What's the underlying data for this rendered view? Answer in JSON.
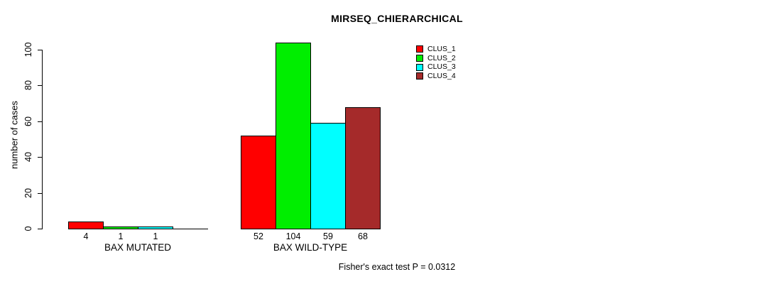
{
  "title": "MIRSEQ_CHIERARCHICAL",
  "chart_data": {
    "type": "bar",
    "title": "MIRSEQ_CHIERARCHICAL",
    "xlabel": "",
    "ylabel": "number of cases",
    "ylim": [
      0,
      100
    ],
    "yticks": [
      0,
      20,
      40,
      60,
      80,
      100
    ],
    "grid": false,
    "categories": [
      "BAX MUTATED",
      "BAX WILD-TYPE"
    ],
    "series": [
      {
        "name": "CLUS_1",
        "color": "#FF0000",
        "values": [
          4,
          52
        ]
      },
      {
        "name": "CLUS_2",
        "color": "#00EE00",
        "values": [
          1,
          104
        ]
      },
      {
        "name": "CLUS_3",
        "color": "#00FFFF",
        "values": [
          1,
          59
        ]
      },
      {
        "name": "CLUS_4",
        "color": "#A52A2A",
        "values": [
          0,
          68
        ]
      }
    ],
    "bar_value_labels": [
      [
        "4",
        "1",
        "1",
        ""
      ],
      [
        "52",
        "104",
        "59",
        "68"
      ]
    ],
    "legend": {
      "position": "top-right"
    },
    "annotation": "Fisher's exact test P = 0.0312"
  }
}
